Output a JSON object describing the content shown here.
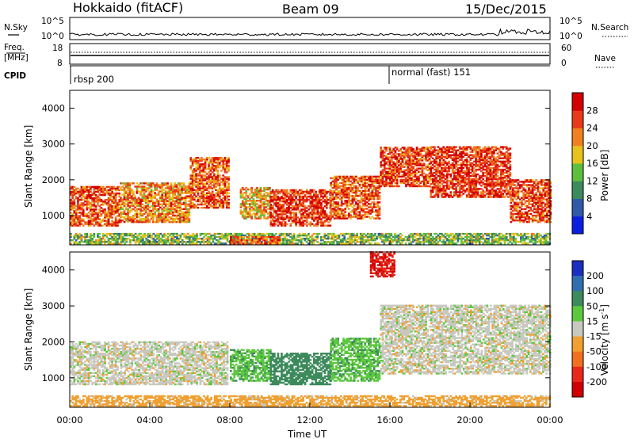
{
  "header": {
    "station": "Hokkaido (fitACF)",
    "beam": "Beam 09",
    "date": "15/Dec/2015"
  },
  "strips": {
    "nsky_label": "N.Sky",
    "nsearch_label": "N.Search",
    "noise_ticks": [
      "10^5",
      "10^0"
    ],
    "freq_label_1": "Freq.",
    "freq_label_2": "[MHz]",
    "freq_ticks": [
      "18",
      "8"
    ],
    "nave_ticks": [
      "60",
      "0"
    ],
    "nave_label": "Nave",
    "cpid_label": "CPID",
    "cpid_segments": [
      {
        "label": "rbsp 200",
        "start_ut": 0
      },
      {
        "label": "normal (fast) 151",
        "start_ut": 16
      }
    ]
  },
  "x_axis": {
    "label": "Time UT",
    "ticks": [
      "00:00",
      "04:00",
      "08:00",
      "12:00",
      "16:00",
      "20:00",
      "00:00"
    ],
    "range_hours": [
      0,
      24
    ]
  },
  "y_axis": {
    "label": "Slant Range [km]",
    "ticks": [
      "1000",
      "2000",
      "3000",
      "4000"
    ],
    "range_km": [
      180,
      4500
    ]
  },
  "colorbars": {
    "power": {
      "label": "Power [dB]",
      "ticks": [
        "4",
        "8",
        "12",
        "16",
        "20",
        "24",
        "28"
      ],
      "colors": [
        "#0a1fe0",
        "#2f5aa8",
        "#3d8a5c",
        "#5cbf3e",
        "#e6c21a",
        "#f08020",
        "#e83a1a",
        "#d40000"
      ]
    },
    "velocity": {
      "label": "Velocity [m s",
      "label_sup": "-1",
      "label_end": "]",
      "ticks": [
        "200",
        "100",
        "50",
        "15",
        "-15",
        "-50",
        "-100",
        "-200"
      ],
      "colors": [
        "#1a2fc0",
        "#2f6fb0",
        "#3d8a5c",
        "#5cc83e",
        "#c8c8c0",
        "#f0a030",
        "#f07020",
        "#e8281a",
        "#d00000"
      ]
    }
  },
  "chart_data": [
    {
      "type": "heatmap",
      "title": "Power [dB]",
      "xlabel": "Time UT",
      "ylabel": "Slant Range [km]",
      "xlim": [
        0,
        24
      ],
      "ylim": [
        180,
        4500
      ],
      "color_range": [
        0,
        32
      ],
      "regions": [
        {
          "t": [
            0.0,
            2.5
          ],
          "r": [
            700,
            1800
          ],
          "value": 25
        },
        {
          "t": [
            2.5,
            6.0
          ],
          "r": [
            800,
            1900
          ],
          "value": 22
        },
        {
          "t": [
            6.0,
            7.9
          ],
          "r": [
            1200,
            2600
          ],
          "value": 25
        },
        {
          "t": [
            8.5,
            10.0
          ],
          "r": [
            900,
            1800
          ],
          "value": 20
        },
        {
          "t": [
            10.0,
            13.0
          ],
          "r": [
            700,
            1700
          ],
          "value": 27
        },
        {
          "t": [
            13.0,
            15.5
          ],
          "r": [
            900,
            2100
          ],
          "value": 25
        },
        {
          "t": [
            15.5,
            18.0
          ],
          "r": [
            1800,
            2900
          ],
          "value": 26
        },
        {
          "t": [
            18.0,
            22.0
          ],
          "r": [
            1500,
            2900
          ],
          "value": 27
        },
        {
          "t": [
            22.0,
            24.0
          ],
          "r": [
            800,
            2000
          ],
          "value": 26
        },
        {
          "t": [
            0.0,
            24.0
          ],
          "r": [
            200,
            500
          ],
          "value": 14
        },
        {
          "t": [
            8.0,
            10.5
          ],
          "r": [
            200,
            400
          ],
          "value": 24
        }
      ]
    },
    {
      "type": "heatmap",
      "title": "Velocity [m s-1]",
      "xlabel": "Time UT",
      "ylabel": "Slant Range [km]",
      "xlim": [
        0,
        24
      ],
      "ylim": [
        180,
        4500
      ],
      "color_range": [
        -250,
        250
      ],
      "regions": [
        {
          "t": [
            0.0,
            7.9
          ],
          "r": [
            800,
            2000
          ],
          "value": 0
        },
        {
          "t": [
            8.0,
            10.0
          ],
          "r": [
            900,
            1800
          ],
          "value": 40
        },
        {
          "t": [
            10.0,
            13.0
          ],
          "r": [
            800,
            1700
          ],
          "value": 80
        },
        {
          "t": [
            13.0,
            15.5
          ],
          "r": [
            900,
            2100
          ],
          "value": 40
        },
        {
          "t": [
            15.5,
            24.0
          ],
          "r": [
            1100,
            3000
          ],
          "value": 0
        },
        {
          "t": [
            15.0,
            16.2
          ],
          "r": [
            3800,
            4500
          ],
          "value": -200
        },
        {
          "t": [
            0.0,
            24.0
          ],
          "r": [
            200,
            500
          ],
          "value": -30
        }
      ]
    }
  ]
}
